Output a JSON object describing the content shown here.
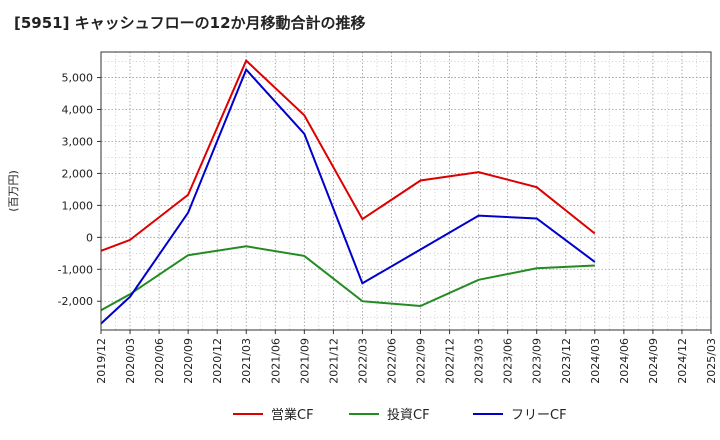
{
  "chart_data": {
    "type": "line",
    "title": "[5951]  キャッシュフローの12か月移動合計の推移",
    "ylabel": "(百万円)",
    "xlabel": "",
    "ylim": [
      -2900,
      5800
    ],
    "yticks": [
      -2000,
      -1000,
      0,
      1000,
      2000,
      3000,
      4000,
      5000
    ],
    "ytick_labels": [
      "-2,000",
      "-1,000",
      "0",
      "1,000",
      "2,000",
      "3,000",
      "4,000",
      "5,000"
    ],
    "x_ticks": [
      "2019/12",
      "2020/03",
      "2020/06",
      "2020/09",
      "2020/12",
      "2021/03",
      "2021/06",
      "2021/09",
      "2021/12",
      "2022/03",
      "2022/06",
      "2022/09",
      "2022/12",
      "2023/03",
      "2023/06",
      "2023/09",
      "2023/12",
      "2024/03",
      "2024/06",
      "2024/09",
      "2024/12",
      "2025/03"
    ],
    "grid": true,
    "legend_position": "bottom",
    "series": [
      {
        "name": "営業CF",
        "color": "#dd0000",
        "points": [
          {
            "x": "2019/12",
            "y": -420
          },
          {
            "x": "2020/03",
            "y": -80
          },
          {
            "x": "2020/09",
            "y": 1330
          },
          {
            "x": "2021/03",
            "y": 5530
          },
          {
            "x": "2021/09",
            "y": 3820
          },
          {
            "x": "2022/03",
            "y": 570
          },
          {
            "x": "2022/09",
            "y": 1780
          },
          {
            "x": "2023/03",
            "y": 2040
          },
          {
            "x": "2023/09",
            "y": 1570
          },
          {
            "x": "2024/03",
            "y": 120
          }
        ]
      },
      {
        "name": "投資CF",
        "color": "#228b22",
        "points": [
          {
            "x": "2019/12",
            "y": -2280
          },
          {
            "x": "2020/03",
            "y": -1780
          },
          {
            "x": "2020/09",
            "y": -560
          },
          {
            "x": "2021/03",
            "y": -280
          },
          {
            "x": "2021/09",
            "y": -580
          },
          {
            "x": "2022/03",
            "y": -2000
          },
          {
            "x": "2022/09",
            "y": -2150
          },
          {
            "x": "2023/03",
            "y": -1330
          },
          {
            "x": "2023/09",
            "y": -970
          },
          {
            "x": "2024/03",
            "y": -880
          }
        ]
      },
      {
        "name": "フリーCF",
        "color": "#0000cc",
        "points": [
          {
            "x": "2019/12",
            "y": -2700
          },
          {
            "x": "2020/03",
            "y": -1860
          },
          {
            "x": "2020/09",
            "y": 770
          },
          {
            "x": "2021/03",
            "y": 5250
          },
          {
            "x": "2021/09",
            "y": 3240
          },
          {
            "x": "2022/03",
            "y": -1440
          },
          {
            "x": "2022/09",
            "y": -380
          },
          {
            "x": "2023/03",
            "y": 680
          },
          {
            "x": "2023/09",
            "y": 590
          },
          {
            "x": "2024/03",
            "y": -770
          }
        ]
      }
    ]
  }
}
